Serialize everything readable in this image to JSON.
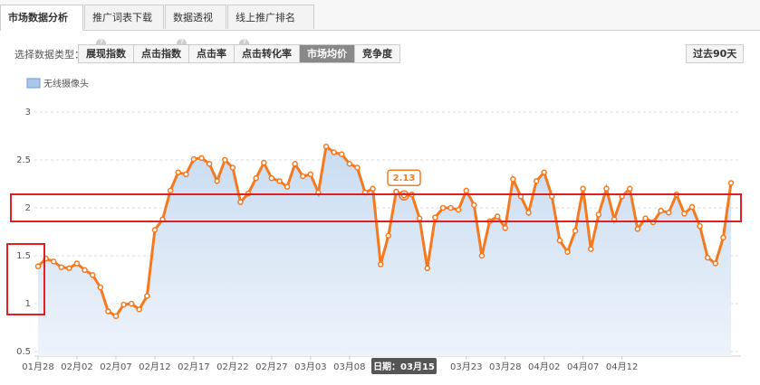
{
  "tabs": [
    "市场数据分析",
    "推广词表下载",
    "数据透视",
    "线上推广排名"
  ],
  "type_label": "选择数据类型：",
  "type_buttons": [
    "展现指数",
    "点击指数",
    "点击率",
    "点击转化率",
    "市场均价",
    "竞争度"
  ],
  "range_button": "过去90天",
  "chart_data": {
    "type": "line",
    "tooltip": "日期：03月15",
    "highlight_index": 47,
    "categories": [
      "01月28",
      null,
      null,
      null,
      null,
      "02月02",
      null,
      null,
      null,
      null,
      "02月07",
      null,
      null,
      null,
      null,
      "02月12",
      null,
      null,
      null,
      null,
      "02月17",
      null,
      null,
      null,
      null,
      "02月22",
      null,
      null,
      null,
      null,
      "02月27",
      null,
      null,
      null,
      null,
      "03月03",
      null,
      null,
      null,
      null,
      "03月08",
      null,
      null,
      null,
      null,
      null,
      null,
      null,
      null,
      null,
      null,
      null,
      null,
      null,
      null,
      "03月23",
      null,
      null,
      null,
      null,
      "03月28",
      null,
      null,
      null,
      null,
      "04月02",
      null,
      null,
      null,
      null,
      "04月07",
      null,
      null,
      null,
      null,
      "04月12",
      null,
      null,
      null,
      null,
      null,
      null,
      null,
      null,
      null,
      null,
      null,
      null,
      null,
      null
    ],
    "series": [
      {
        "name": "无线摄像头",
        "color": "#f5791f",
        "values": [
          1.39,
          1.47,
          1.44,
          1.38,
          1.37,
          1.42,
          1.35,
          1.3,
          1.17,
          0.92,
          0.87,
          0.99,
          1.0,
          0.94,
          1.08,
          1.77,
          1.88,
          2.18,
          2.37,
          2.35,
          2.51,
          2.52,
          2.46,
          2.28,
          2.5,
          2.42,
          2.06,
          2.15,
          2.31,
          2.47,
          2.31,
          2.28,
          2.22,
          2.46,
          2.33,
          2.35,
          2.16,
          2.64,
          2.58,
          2.56,
          2.46,
          2.42,
          2.16,
          2.2,
          1.41,
          1.71,
          2.17,
          2.13,
          2.14,
          1.89,
          1.37,
          1.9,
          2.0,
          2.0,
          1.98,
          2.18,
          2.03,
          1.5,
          1.86,
          1.91,
          1.79,
          2.3,
          2.12,
          1.95,
          2.28,
          2.37,
          2.12,
          1.66,
          1.54,
          1.76,
          2.2,
          1.57,
          1.93,
          2.2,
          1.88,
          2.12,
          2.2,
          1.78,
          1.89,
          1.85,
          1.97,
          1.95,
          2.14,
          1.94,
          2.01,
          1.81,
          1.48,
          1.42,
          1.69,
          2.26
        ]
      }
    ],
    "ylim": [
      0.5,
      3
    ],
    "yticks": [
      0.5,
      1,
      1.5,
      2,
      2.5,
      3
    ],
    "grid": true
  }
}
